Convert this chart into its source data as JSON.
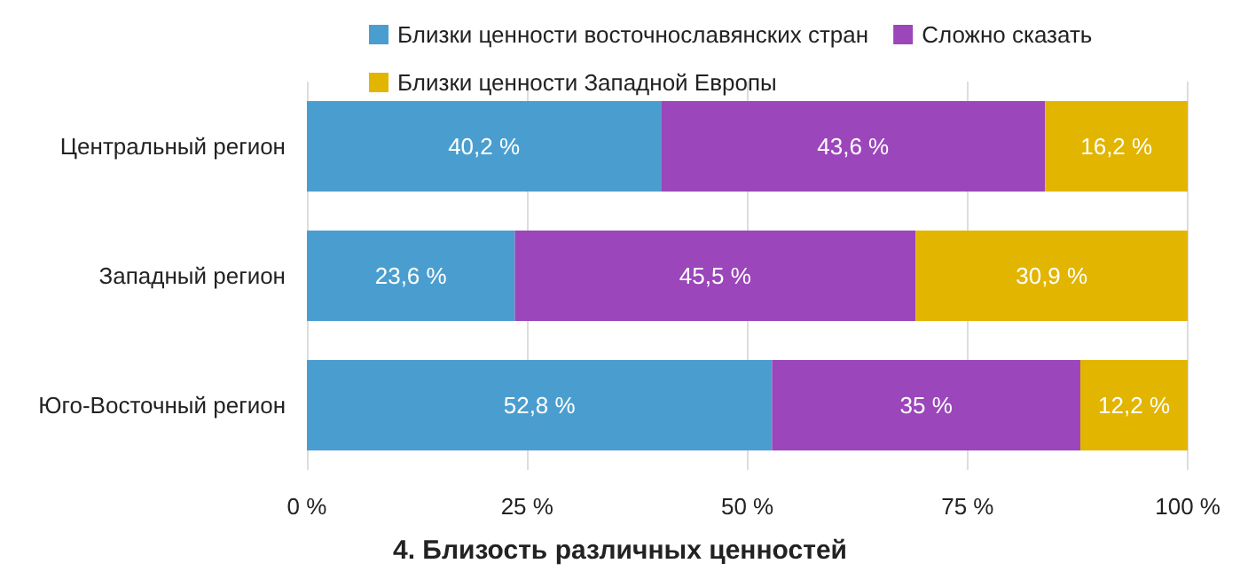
{
  "chart_data": {
    "type": "bar",
    "orientation": "horizontal",
    "stacked": true,
    "title": "4. Близость различных ценностей",
    "categories": [
      "Центральный регион",
      "Западный регион",
      "Юго-Восточный регион"
    ],
    "series": [
      {
        "name": "Близки ценности восточнославянских стран",
        "color": "#4a9ecf",
        "values": [
          40.2,
          23.6,
          52.8
        ],
        "value_labels": [
          "40,2 %",
          "23,6 %",
          "52,8 %"
        ]
      },
      {
        "name": "Сложно сказать",
        "color": "#9b46ba",
        "values": [
          43.6,
          45.5,
          35
        ],
        "value_labels": [
          "43,6 %",
          "45,5 %",
          "35 %"
        ]
      },
      {
        "name": "Близки ценности Западной Европы",
        "color": "#e2b500",
        "values": [
          16.2,
          30.9,
          12.2
        ],
        "value_labels": [
          "16,2 %",
          "30,9 %",
          "12,2 %"
        ]
      }
    ],
    "xlim": [
      0,
      100
    ],
    "xticks": [
      {
        "value": 0,
        "label": "0 %"
      },
      {
        "value": 25,
        "label": "25 %"
      },
      {
        "value": 50,
        "label": "50 %"
      },
      {
        "value": 75,
        "label": "75 %"
      },
      {
        "value": 100,
        "label": "100 %"
      }
    ],
    "grid": "x",
    "legend": "top"
  }
}
